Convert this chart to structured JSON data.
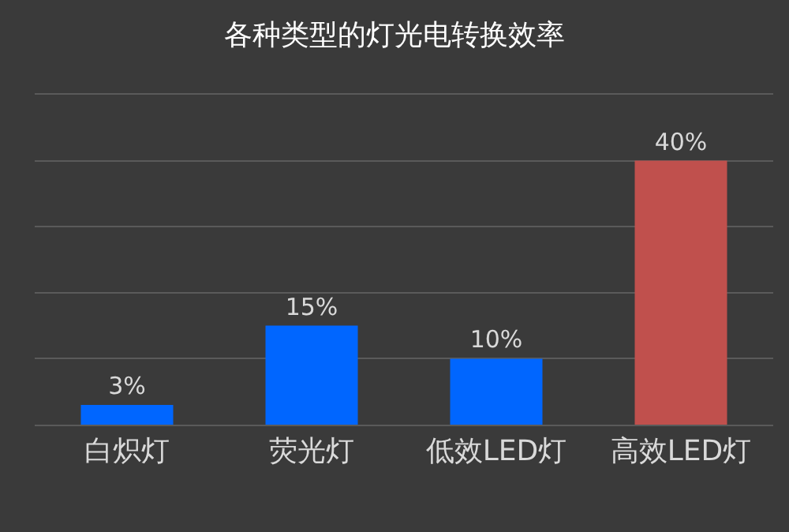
{
  "chart_data": {
    "type": "bar",
    "title": "各种类型的灯光电转换效率",
    "categories": [
      "白炽灯",
      "荧光灯",
      "低效LED灯",
      "高效LED灯"
    ],
    "values": [
      3,
      15,
      10,
      40
    ],
    "colors": [
      "#0066ff",
      "#0066ff",
      "#0066ff",
      "#c0504d"
    ],
    "value_labels": [
      "3%",
      "15%",
      "10%",
      "40%"
    ],
    "ylim": [
      0,
      50
    ],
    "yticks": [
      0,
      10,
      20,
      30,
      40,
      50
    ],
    "grid": "y",
    "tick_labels": "x"
  }
}
